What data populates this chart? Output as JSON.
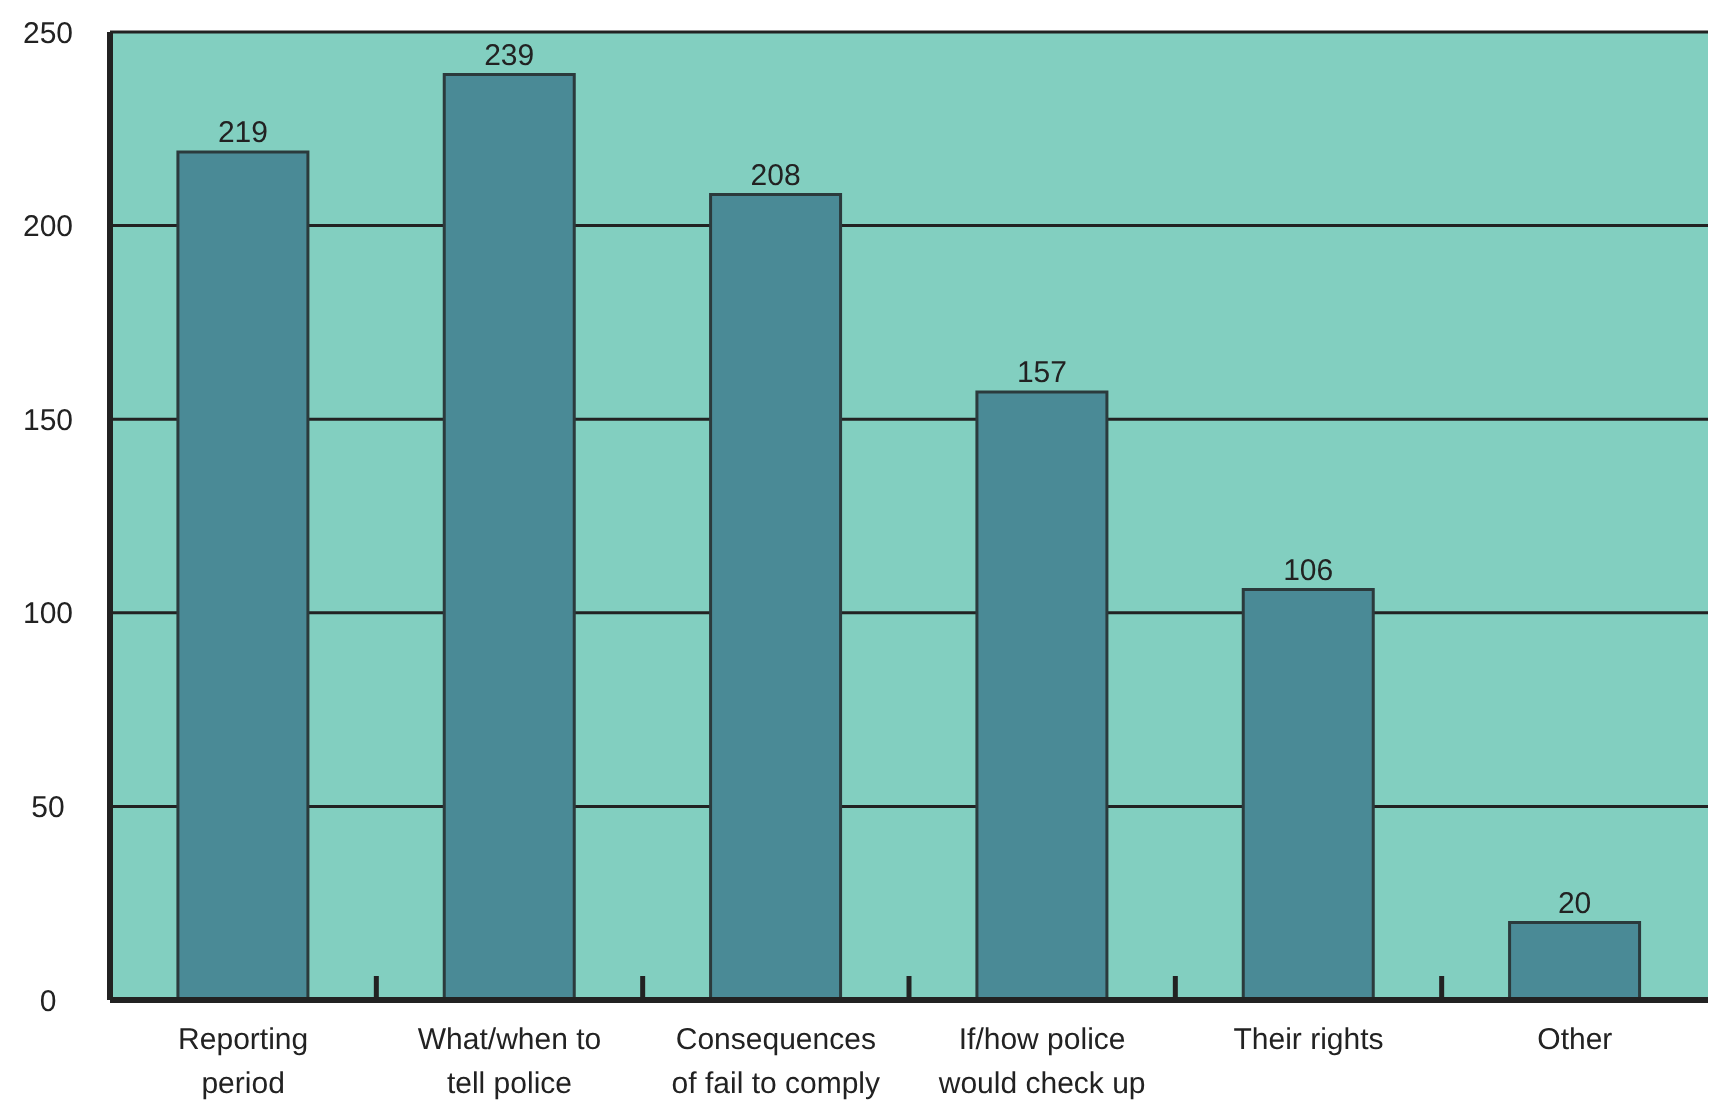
{
  "chart_data": {
    "type": "bar",
    "categories": [
      "Reporting period",
      "What/when to tell police",
      "Consequences of fail to comply",
      "If/how police would check up",
      "Their rights",
      "Other"
    ],
    "values": [
      219,
      239,
      208,
      157,
      106,
      20
    ],
    "color": "#4a8a96",
    "ylim": [
      0,
      250
    ],
    "yticks": [
      0,
      50,
      100,
      150,
      200,
      250
    ],
    "grid": "y",
    "data_labels": true
  }
}
